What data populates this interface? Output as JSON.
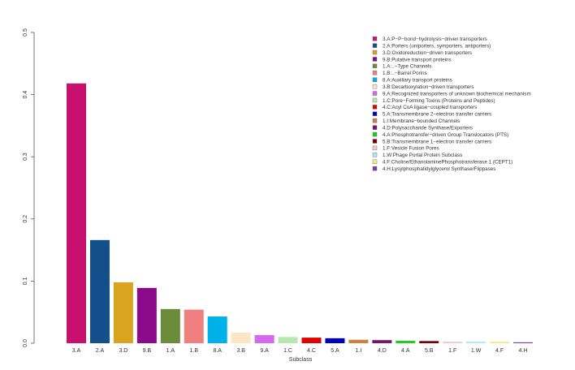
{
  "chart_data": {
    "type": "bar",
    "title": "",
    "xlabel": "Subclass",
    "ylabel": "",
    "ylim": [
      0,
      0.5
    ],
    "yticks": [
      "0.0",
      "0.1",
      "0.2",
      "0.3",
      "0.4",
      "0.5"
    ],
    "grid": false,
    "legend_position": "top-right",
    "categories": [
      "3.A",
      "2.A",
      "3.D",
      "9.B",
      "1.A",
      "1.B",
      "8.A",
      "3.B",
      "9.A",
      "1.C",
      "4.C",
      "5.A",
      "1.I",
      "4.D",
      "4.A",
      "5.B",
      "1.F",
      "1.W",
      "4.F",
      "4.H"
    ],
    "values": [
      0.418,
      0.166,
      0.098,
      0.089,
      0.055,
      0.054,
      0.043,
      0.017,
      0.013,
      0.01,
      0.009,
      0.008,
      0.0056,
      0.005,
      0.004,
      0.0035,
      0.0025,
      0.0025,
      0.0025,
      0.0015
    ],
    "colors": [
      "#c8106e",
      "#134f8a",
      "#d9a520",
      "#8b0a8b",
      "#6b8a3a",
      "#f08080",
      "#00b0e8",
      "#fbe6c6",
      "#d766f0",
      "#b8e8b0",
      "#e00000",
      "#0000c0",
      "#cd8040",
      "#7a1070",
      "#22cc22",
      "#7a0000",
      "#f2c8c8",
      "#b0e8f0",
      "#f0f080",
      "#7b3fa0"
    ],
    "legend": [
      "3.A:P−P−bond−hydrolysis−driven transporters",
      "2.A:Porters (uniporters, symporters, antiporters)",
      "3.D:Oxidoreduction−driven transporters",
      "9.B:Putative transport proteins",
      "1.A:..−Type Channels",
      "1.B:..−Barrel Porins",
      "8.A:Auxiliary transport proteins",
      "3.B:Decarboxylation−driven transporters",
      "9.A:Recognized transporters of unknown biochemical mechanism",
      "1.C:Pore−Forming Toxins (Proteins and Peptides)",
      "4.C:Acyl CoA ligase−coupled transporters",
      "5.A:Transmembrane 2−electron transfer carriers",
      "1.I:Membrane−bounded Channels",
      "4.D:Polysaccharide Synthase/Exporters",
      "4.A:Phosphotransfer−driven Group Translocators (PTS)",
      "5.B:Transmembrane 1−electron transfer carriers",
      "1.F:Vesicle Fusion Pores",
      "1.W:Phage Portal Protein Subclass",
      "4.F:Choline/EthanolaminePhosphotransferase 1 (CEPT1)",
      "4.H:Lysylphosphatidylglycerol Synthase/Flippases"
    ]
  }
}
